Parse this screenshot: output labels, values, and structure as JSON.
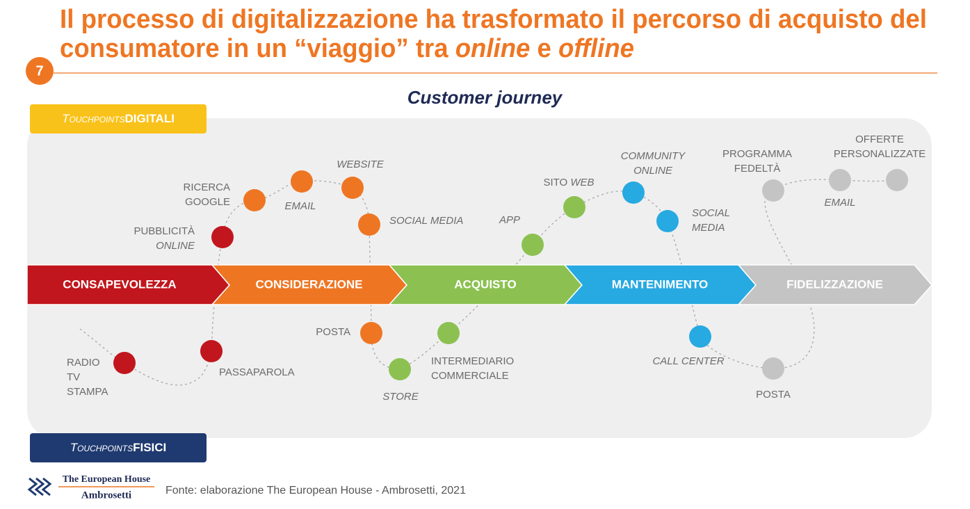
{
  "page_number": "7",
  "title": {
    "lines": [
      [
        {
          "text": "Il processo di digitalizzazione ha trasformato il percorso di acquisto del",
          "italic": false
        }
      ],
      [
        {
          "text": "consumatore in un “viaggio” tra ",
          "italic": false
        },
        {
          "text": "online",
          "italic": true
        },
        {
          "text": " e ",
          "italic": false
        },
        {
          "text": "offline",
          "italic": true
        }
      ]
    ]
  },
  "subtitle": "Customer journey",
  "digital_badge": {
    "lead": "Touchpoints",
    "bold": "DIGITALI"
  },
  "physical_badge": {
    "lead": "Touchpoints",
    "bold": "FISICI"
  },
  "stages": [
    {
      "label": "CONSAPEVOLEZZA",
      "color": "#c1161d"
    },
    {
      "label": "CONSIDERAZIONE",
      "color": "#ee7623"
    },
    {
      "label": "ACQUISTO",
      "color": "#8cc152"
    },
    {
      "label": "MANTENIMENTO",
      "color": "#27a9e1"
    },
    {
      "label": "FIDELIZZAZIONE",
      "color": "#c4c4c4"
    }
  ],
  "digital_touchpoints": [
    {
      "color": "#c1161d",
      "lines": [
        [
          {
            "text": "PUBBLICITÀ",
            "italic": false
          }
        ],
        [
          {
            "text": "ONLINE",
            "italic": true
          }
        ]
      ]
    },
    {
      "color": "#ee7623",
      "lines": [
        [
          {
            "text": "RICERCA",
            "italic": false
          }
        ],
        [
          {
            "text": "GOOGLE",
            "italic": false
          }
        ]
      ]
    },
    {
      "color": "#ee7623",
      "lines": [
        [
          {
            "text": "EMAIL",
            "italic": true
          }
        ]
      ]
    },
    {
      "color": "#ee7623",
      "lines": [
        [
          {
            "text": "WEBSITE",
            "italic": true
          }
        ]
      ]
    },
    {
      "color": "#ee7623",
      "lines": [
        [
          {
            "text": "SOCIAL MEDIA",
            "italic": true
          }
        ]
      ]
    },
    {
      "color": "#8cc152",
      "lines": [
        [
          {
            "text": "APP",
            "italic": true
          }
        ]
      ]
    },
    {
      "color": "#8cc152",
      "lines": [
        [
          {
            "text": "SITO ",
            "italic": false
          },
          {
            "text": "WEB",
            "italic": true
          }
        ]
      ]
    },
    {
      "color": "#27a9e1",
      "lines": [
        [
          {
            "text": "COMMUNITY",
            "italic": true
          }
        ],
        [
          {
            "text": "ONLINE",
            "italic": true
          }
        ]
      ]
    },
    {
      "color": "#27a9e1",
      "lines": [
        [
          {
            "text": "SOCIAL",
            "italic": true
          }
        ],
        [
          {
            "text": "MEDIA",
            "italic": true
          }
        ]
      ]
    },
    {
      "color": "#c4c4c4",
      "lines": [
        [
          {
            "text": "PROGRAMMA",
            "italic": false
          }
        ],
        [
          {
            "text": "FEDELTÀ",
            "italic": false
          }
        ]
      ]
    },
    {
      "color": "#c4c4c4",
      "lines": [
        [
          {
            "text": "EMAIL",
            "italic": true
          }
        ]
      ]
    },
    {
      "color": "#c4c4c4",
      "lines": [
        [
          {
            "text": "OFFERTE",
            "italic": false
          }
        ],
        [
          {
            "text": "PERSONALIZZATE",
            "italic": false
          }
        ]
      ]
    }
  ],
  "physical_touchpoints": [
    {
      "color": "#c1161d",
      "lines": [
        [
          {
            "text": "RADIO",
            "italic": false
          }
        ],
        [
          {
            "text": "TV",
            "italic": false
          }
        ],
        [
          {
            "text": "STAMPA",
            "italic": false
          }
        ]
      ]
    },
    {
      "color": "#c1161d",
      "lines": [
        [
          {
            "text": "PASSAPAROLA",
            "italic": false
          }
        ]
      ]
    },
    {
      "color": "#ee7623",
      "lines": [
        [
          {
            "text": "POSTA",
            "italic": false
          }
        ]
      ]
    },
    {
      "color": "#8cc152",
      "lines": [
        [
          {
            "text": "STORE",
            "italic": true
          }
        ]
      ]
    },
    {
      "color": "#8cc152",
      "lines": [
        [
          {
            "text": "INTERMEDIARIO",
            "italic": false
          }
        ],
        [
          {
            "text": "COMMERCIALE",
            "italic": false
          }
        ]
      ]
    },
    {
      "color": "#27a9e1",
      "lines": [
        [
          {
            "text": "CALL CENTER",
            "italic": true
          }
        ]
      ]
    },
    {
      "color": "#c4c4c4",
      "lines": [
        [
          {
            "text": "POSTA",
            "italic": false
          }
        ]
      ]
    }
  ],
  "footer": {
    "logo": [
      "The European House",
      "Ambrosetti"
    ],
    "source": "Fonte: elaborazione The European House - Ambrosetti, 2021"
  }
}
